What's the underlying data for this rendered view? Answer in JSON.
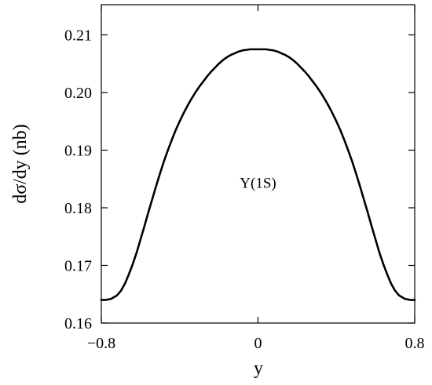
{
  "chart_data": {
    "type": "line",
    "title": "",
    "xlabel": "y",
    "ylabel": "dσ/dy (nb)",
    "xlim": [
      -0.8,
      0.8
    ],
    "ylim": [
      0.16,
      0.215
    ],
    "xticks": [
      -0.8,
      0,
      0.8
    ],
    "xtick_labels": [
      "−0.8",
      "0",
      "0.8"
    ],
    "yticks": [
      0.16,
      0.17,
      0.18,
      0.19,
      0.2,
      0.21
    ],
    "ytick_labels": [
      "0.16",
      "0.17",
      "0.18",
      "0.19",
      "0.20",
      "0.21"
    ],
    "grid": false,
    "annotation": {
      "text": "Υ(1S)",
      "x": 0.0,
      "y": 0.1835
    },
    "series": [
      {
        "x": [
          -0.8,
          -0.78,
          -0.75,
          -0.72,
          -0.7,
          -0.68,
          -0.66,
          -0.64,
          -0.62,
          -0.6,
          -0.58,
          -0.56,
          -0.54,
          -0.52,
          -0.5,
          -0.48,
          -0.46,
          -0.44,
          -0.42,
          -0.4,
          -0.38,
          -0.36,
          -0.34,
          -0.32,
          -0.3,
          -0.28,
          -0.26,
          -0.24,
          -0.22,
          -0.2,
          -0.18,
          -0.16,
          -0.14,
          -0.12,
          -0.1,
          -0.08,
          -0.06,
          -0.04,
          -0.02,
          0,
          0.02,
          0.04,
          0.06,
          0.08,
          0.1,
          0.12,
          0.14,
          0.16,
          0.18,
          0.2,
          0.22,
          0.24,
          0.26,
          0.28,
          0.3,
          0.32,
          0.34,
          0.36,
          0.38,
          0.4,
          0.42,
          0.44,
          0.46,
          0.48,
          0.5,
          0.52,
          0.54,
          0.56,
          0.58,
          0.6,
          0.62,
          0.64,
          0.66,
          0.68,
          0.7,
          0.72,
          0.75,
          0.78,
          0.8
        ],
        "y": [
          0.164,
          0.164,
          0.1642,
          0.1648,
          0.1656,
          0.1668,
          0.1684,
          0.1702,
          0.1722,
          0.1745,
          0.1768,
          0.1792,
          0.1815,
          0.1838,
          0.186,
          0.1881,
          0.19,
          0.1918,
          0.1935,
          0.195,
          0.1964,
          0.1977,
          0.1989,
          0.2,
          0.201,
          0.2019,
          0.2028,
          0.2036,
          0.2043,
          0.205,
          0.2056,
          0.2061,
          0.2065,
          0.2068,
          0.2071,
          0.2073,
          0.2074,
          0.2075,
          0.2075,
          0.2075,
          0.2075,
          0.2075,
          0.2074,
          0.2073,
          0.2071,
          0.2068,
          0.2065,
          0.2061,
          0.2056,
          0.205,
          0.2043,
          0.2036,
          0.2028,
          0.2019,
          0.201,
          0.2,
          0.1989,
          0.1977,
          0.1964,
          0.195,
          0.1935,
          0.1918,
          0.19,
          0.1881,
          0.186,
          0.1838,
          0.1815,
          0.1792,
          0.1768,
          0.1745,
          0.1722,
          0.1702,
          0.1684,
          0.1668,
          0.1656,
          0.1648,
          0.1642,
          0.164,
          0.164
        ]
      }
    ]
  }
}
